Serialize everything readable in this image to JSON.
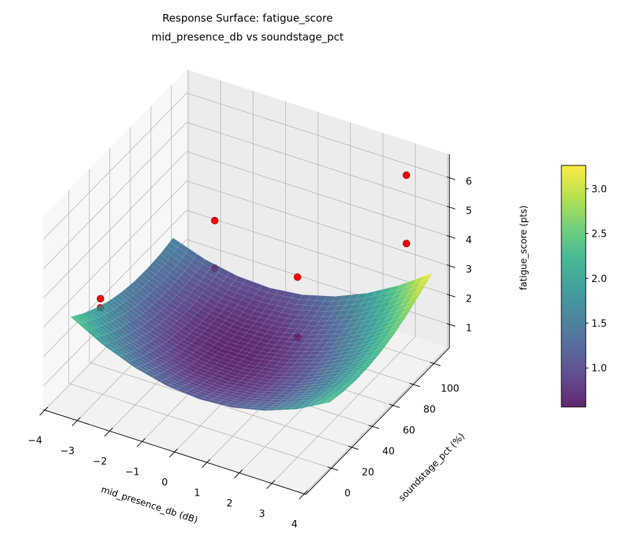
{
  "chart_data": {
    "type": "surface3d",
    "title": "Response Surface: fatigue_score",
    "subtitle": "mid_presence_db vs soundstage_pct",
    "xlabel": "mid_presence_db (dB)",
    "ylabel": "soundstage_pct (%)",
    "zlabel": "fatigue_score (pts)",
    "xlim": [
      -4.05,
      4.05
    ],
    "ylim": [
      -25,
      115
    ],
    "zlim": [
      0.2,
      6.8
    ],
    "grid": true,
    "xticks": [
      -4,
      -3,
      -2,
      -1,
      0,
      1,
      2,
      3,
      4
    ],
    "xtick_labels": [
      "−4",
      "−3",
      "−2",
      "−1",
      "0",
      "1",
      "2",
      "3",
      "4"
    ],
    "yticks": [
      0,
      20,
      40,
      60,
      80,
      100
    ],
    "ytick_labels": [
      "0",
      "20",
      "40",
      "60",
      "80",
      "100"
    ],
    "zticks": [
      1,
      2,
      3,
      4,
      5,
      6
    ],
    "ztick_labels": [
      "1",
      "2",
      "3",
      "4",
      "5",
      "6"
    ],
    "surface": {
      "colormap": "viridis",
      "alpha": 0.85,
      "x": [
        -4,
        -3,
        -2,
        -1,
        0,
        1,
        2,
        3,
        4
      ],
      "y": [
        0,
        12.5,
        25,
        37.5,
        50,
        62.5,
        75,
        87.5,
        100
      ],
      "z": [
        [
          2.49,
          2.16,
          1.9,
          1.69,
          1.55,
          1.47,
          1.46,
          1.5,
          1.61
        ],
        [
          1.89,
          1.59,
          1.35,
          1.17,
          1.06,
          1.01,
          1.02,
          1.09,
          1.23
        ],
        [
          1.46,
          1.18,
          0.97,
          0.82,
          0.74,
          0.71,
          0.75,
          0.85,
          1.02
        ],
        [
          1.19,
          0.95,
          0.76,
          0.64,
          0.58,
          0.59,
          0.65,
          0.78,
          0.97
        ],
        [
          1.1,
          0.88,
          0.73,
          0.63,
          0.6,
          0.63,
          0.73,
          0.88,
          1.1
        ],
        [
          1.18,
          0.99,
          0.86,
          0.79,
          0.79,
          0.85,
          0.97,
          1.15,
          1.4
        ],
        [
          1.43,
          1.26,
          1.16,
          1.12,
          1.15,
          1.23,
          1.38,
          1.59,
          1.87
        ],
        [
          1.84,
          1.71,
          1.63,
          1.62,
          1.67,
          1.79,
          1.96,
          2.2,
          2.5
        ],
        [
          2.43,
          2.32,
          2.27,
          2.29,
          2.37,
          2.51,
          2.71,
          2.98,
          3.26
        ]
      ]
    },
    "points": [
      {
        "x": -3.2,
        "y": 4,
        "z": 3.25
      },
      {
        "x": -3.2,
        "y": 4,
        "z": 2.94
      },
      {
        "x": -2.3,
        "y": 87,
        "z": 3.27
      },
      {
        "x": -2.3,
        "y": 87,
        "z": 1.65
      },
      {
        "x": 0.0,
        "y": 95,
        "z": 1.88
      },
      {
        "x": 0.8,
        "y": 70,
        "z": 1.01
      },
      {
        "x": 3.2,
        "y": 100,
        "z": 6.32
      },
      {
        "x": 3.2,
        "y": 100,
        "z": 3.99
      }
    ],
    "point_color": "#ff0000",
    "colorbar": {
      "clim": [
        0.565,
        3.26
      ],
      "ticks": [
        1.0,
        1.5,
        2.0,
        2.5,
        3.0
      ],
      "tick_labels": [
        "1.0",
        "1.5",
        "2.0",
        "2.5",
        "3.0"
      ]
    }
  }
}
